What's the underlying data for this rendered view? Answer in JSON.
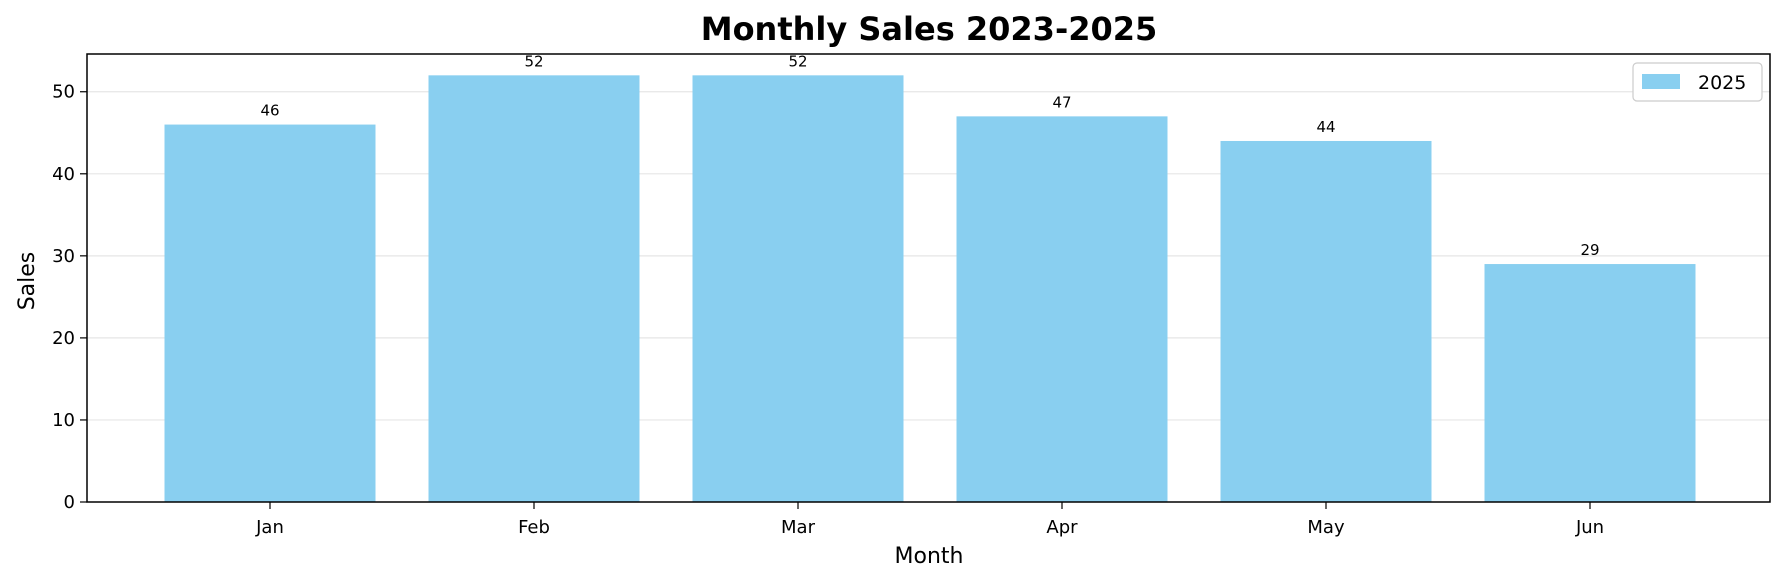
{
  "chart_data": {
    "type": "bar",
    "title": "Monthly Sales 2023-2025",
    "xlabel": "Month",
    "ylabel": "Sales",
    "categories": [
      "Jan",
      "Feb",
      "Mar",
      "Apr",
      "May",
      "Jun"
    ],
    "series": [
      {
        "name": "2025",
        "values": [
          46,
          52,
          52,
          47,
          44,
          29
        ],
        "color": "#89CFF0"
      }
    ],
    "ylim": [
      0,
      54.6
    ],
    "yticks": [
      0,
      10,
      20,
      30,
      40,
      50
    ],
    "grid": "horizontal",
    "legend_position": "top-right"
  }
}
